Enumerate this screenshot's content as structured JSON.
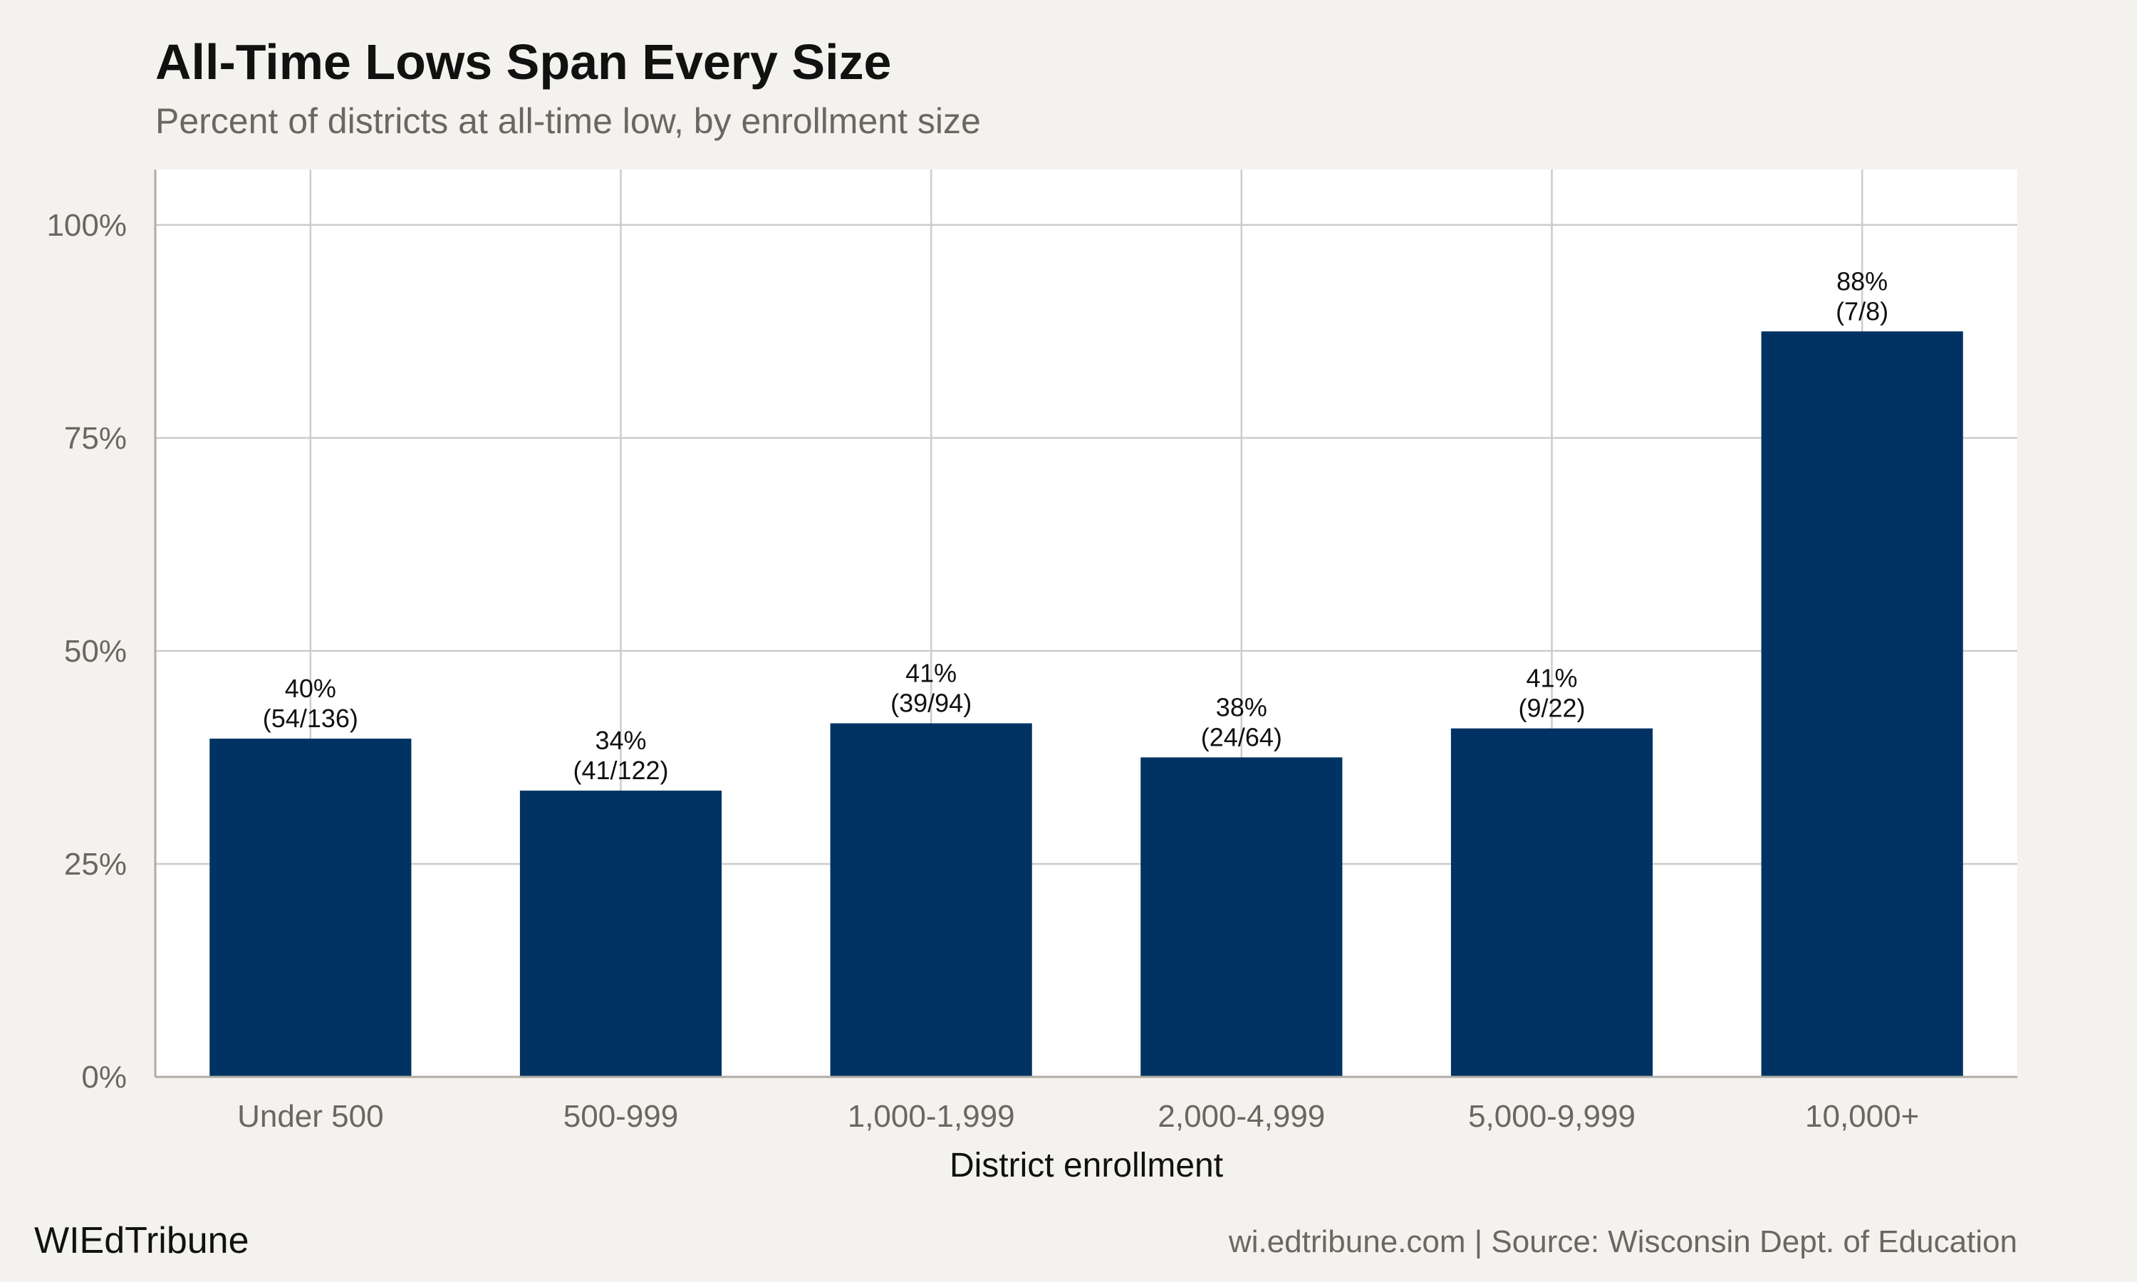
{
  "header": {
    "title": "All-Time Lows Span Every Size",
    "subtitle": "Percent of districts at all-time low, by enrollment size"
  },
  "footer": {
    "brand": "WIEdTribune",
    "source": "wi.edtribune.com | Source: Wisconsin Dept. of Education"
  },
  "colors": {
    "bar": "#003363",
    "panel": "#ffffff",
    "background": "#f4f2ee",
    "grid": "#cccccc"
  },
  "chart_data": {
    "type": "bar",
    "title": "All-Time Lows Span Every Size",
    "subtitle": "Percent of districts at all-time low, by enrollment size",
    "xlabel": "District enrollment",
    "ylabel": "",
    "ylim": [
      0,
      106.5
    ],
    "yticks": [
      0,
      25,
      50,
      75,
      100
    ],
    "ytick_labels": [
      "0%",
      "25%",
      "50%",
      "75%",
      "100%"
    ],
    "grid": true,
    "categories": [
      "Under 500",
      "500-999",
      "1,000-1,999",
      "2,000-4,999",
      "5,000-9,999",
      "10,000+"
    ],
    "values": [
      39.7,
      33.6,
      41.5,
      37.5,
      40.9,
      87.5
    ],
    "data_labels": [
      [
        "40%",
        "(54/136)"
      ],
      [
        "34%",
        "(41/122)"
      ],
      [
        "41%",
        "(39/94)"
      ],
      [
        "38%",
        "(24/64)"
      ],
      [
        "41%",
        "(9/22)"
      ],
      [
        "88%",
        "(7/8)"
      ]
    ]
  }
}
